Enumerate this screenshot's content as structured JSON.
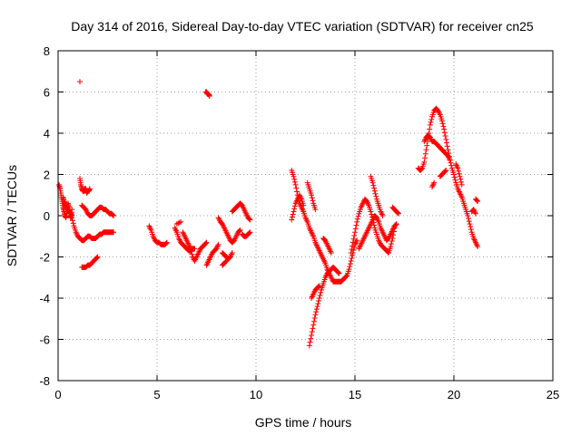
{
  "chart_data": {
    "type": "scatter",
    "title": "Day 314 of 2016, Sidereal Day-to-day VTEC variation (SDTVAR) for receiver cn25",
    "xlabel": "GPS time / hours",
    "ylabel": "SDTVAR / TECUs",
    "xlim": [
      0,
      25
    ],
    "ylim": [
      -8,
      8
    ],
    "xticks": [
      "0",
      "5",
      "10",
      "15",
      "20",
      "25"
    ],
    "yticks": [
      "-8",
      "-6",
      "-4",
      "-2",
      "0",
      "2",
      "4",
      "6",
      "8"
    ],
    "grid": true,
    "marker": "+",
    "point_color": "#ff0000",
    "segments": [
      [
        [
          0.05,
          1.5
        ],
        [
          0.1,
          1.3
        ],
        [
          0.15,
          1.0
        ],
        [
          0.2,
          0.7
        ],
        [
          0.25,
          0.4
        ],
        [
          0.3,
          0.2
        ],
        [
          0.35,
          0.0
        ],
        [
          0.4,
          -0.1
        ],
        [
          0.45,
          0.2
        ],
        [
          0.5,
          0.6
        ],
        [
          0.55,
          0.4
        ],
        [
          0.6,
          0.0
        ],
        [
          0.65,
          -0.1
        ],
        [
          0.7,
          0.3
        ]
      ],
      [
        [
          0.25,
          0.9
        ],
        [
          0.3,
          0.7
        ],
        [
          0.35,
          0.6
        ],
        [
          0.4,
          0.5
        ],
        [
          0.45,
          0.4
        ],
        [
          0.5,
          0.3
        ],
        [
          0.55,
          0.2
        ],
        [
          0.6,
          0.1
        ],
        [
          0.65,
          0.1
        ],
        [
          0.7,
          0.0
        ]
      ],
      [
        [
          0.7,
          -0.1
        ],
        [
          0.8,
          -0.5
        ],
        [
          0.9,
          -0.8
        ],
        [
          1.0,
          -1.0
        ],
        [
          1.1,
          -1.1
        ],
        [
          1.2,
          -1.2
        ],
        [
          1.3,
          -1.2
        ],
        [
          1.4,
          -1.1
        ],
        [
          1.5,
          -1.0
        ],
        [
          1.6,
          -1.0
        ],
        [
          1.7,
          -1.1
        ],
        [
          1.8,
          -1.1
        ],
        [
          1.9,
          -1.1
        ],
        [
          2.0,
          -1.0
        ],
        [
          2.1,
          -0.9
        ],
        [
          2.2,
          -0.9
        ],
        [
          2.3,
          -0.8
        ],
        [
          2.4,
          -0.8
        ],
        [
          2.5,
          -0.8
        ],
        [
          2.6,
          -0.8
        ],
        [
          2.7,
          -0.8
        ],
        [
          2.8,
          -0.8
        ]
      ],
      [
        [
          1.1,
          1.8
        ],
        [
          1.15,
          1.5
        ],
        [
          1.2,
          1.3
        ],
        [
          1.25,
          1.2
        ],
        [
          1.3,
          1.2
        ],
        [
          1.35,
          1.3
        ],
        [
          1.4,
          1.3
        ],
        [
          1.45,
          1.1
        ],
        [
          1.5,
          1.2
        ],
        [
          1.55,
          1.2
        ],
        [
          1.6,
          1.3
        ]
      ],
      [
        [
          1.2,
          0.5
        ],
        [
          1.3,
          0.4
        ],
        [
          1.4,
          0.3
        ],
        [
          1.5,
          0.1
        ],
        [
          1.6,
          0.0
        ],
        [
          1.7,
          0.0
        ],
        [
          1.8,
          0.1
        ],
        [
          1.9,
          0.2
        ],
        [
          2.0,
          0.3
        ],
        [
          2.1,
          0.4
        ],
        [
          2.2,
          0.4
        ],
        [
          2.3,
          0.3
        ],
        [
          2.4,
          0.3
        ],
        [
          2.5,
          0.2
        ],
        [
          2.6,
          0.1
        ],
        [
          2.7,
          0.1
        ],
        [
          2.8,
          0.0
        ]
      ],
      [
        [
          1.2,
          -2.5
        ],
        [
          1.3,
          -2.5
        ],
        [
          1.4,
          -2.5
        ],
        [
          1.5,
          -2.4
        ],
        [
          1.6,
          -2.4
        ],
        [
          1.7,
          -2.3
        ],
        [
          1.8,
          -2.2
        ],
        [
          1.9,
          -2.1
        ],
        [
          2.0,
          -2.0
        ]
      ],
      [
        [
          1.1,
          6.5
        ]
      ],
      [
        [
          4.6,
          -0.5
        ],
        [
          4.7,
          -0.7
        ],
        [
          4.8,
          -1.0
        ],
        [
          4.9,
          -1.2
        ],
        [
          5.0,
          -1.3
        ],
        [
          5.1,
          -1.3
        ],
        [
          5.2,
          -1.4
        ],
        [
          5.3,
          -1.4
        ],
        [
          5.4,
          -1.4
        ],
        [
          5.5,
          -1.3
        ]
      ],
      [
        [
          5.9,
          -0.6
        ],
        [
          6.0,
          -0.8
        ],
        [
          6.1,
          -1.1
        ],
        [
          6.2,
          -1.3
        ],
        [
          6.3,
          -1.4
        ],
        [
          6.4,
          -1.5
        ],
        [
          6.5,
          -1.6
        ],
        [
          6.6,
          -1.7
        ],
        [
          6.7,
          -1.7
        ],
        [
          6.8,
          -1.6
        ],
        [
          6.9,
          -1.6
        ]
      ],
      [
        [
          6.3,
          -0.8
        ],
        [
          6.4,
          -1.0
        ],
        [
          6.5,
          -1.2
        ],
        [
          6.6,
          -1.4
        ],
        [
          6.7,
          -1.6
        ],
        [
          6.8,
          -2.0
        ],
        [
          6.9,
          -2.2
        ],
        [
          7.0,
          -2.0
        ],
        [
          7.1,
          -1.8
        ],
        [
          7.2,
          -1.6
        ],
        [
          7.3,
          -1.5
        ],
        [
          7.4,
          -1.4
        ],
        [
          7.5,
          -1.3
        ]
      ],
      [
        [
          6.0,
          -0.4
        ],
        [
          6.2,
          -0.3
        ]
      ],
      [
        [
          7.5,
          -2.4
        ],
        [
          7.6,
          -2.2
        ],
        [
          7.7,
          -2.0
        ],
        [
          7.8,
          -1.8
        ],
        [
          7.9,
          -1.7
        ],
        [
          8.0,
          -1.6
        ],
        [
          8.1,
          -1.4
        ]
      ],
      [
        [
          7.45,
          6.0
        ],
        [
          7.5,
          6.0
        ],
        [
          7.55,
          5.9
        ],
        [
          7.6,
          5.9
        ],
        [
          7.65,
          5.8
        ]
      ],
      [
        [
          8.1,
          -0.1
        ],
        [
          8.2,
          -0.3
        ],
        [
          8.3,
          -0.4
        ],
        [
          8.4,
          -0.6
        ],
        [
          8.5,
          -0.8
        ],
        [
          8.6,
          -1.0
        ],
        [
          8.7,
          -1.2
        ],
        [
          8.8,
          -1.3
        ],
        [
          8.9,
          -1.2
        ],
        [
          9.0,
          -1.0
        ],
        [
          9.1,
          -0.8
        ],
        [
          9.2,
          -0.7
        ]
      ],
      [
        [
          8.3,
          -1.8
        ],
        [
          8.4,
          -1.9
        ],
        [
          8.5,
          -2.0
        ],
        [
          8.6,
          -2.1
        ],
        [
          8.7,
          -2.0
        ],
        [
          8.8,
          -1.8
        ]
      ],
      [
        [
          8.3,
          -2.4
        ],
        [
          8.4,
          -2.3
        ],
        [
          8.5,
          -2.2
        ]
      ],
      [
        [
          8.8,
          0.2
        ],
        [
          8.9,
          0.3
        ],
        [
          9.0,
          0.4
        ],
        [
          9.1,
          0.5
        ],
        [
          9.2,
          0.6
        ],
        [
          9.3,
          0.5
        ],
        [
          9.4,
          0.3
        ],
        [
          9.5,
          0.1
        ],
        [
          9.6,
          -0.1
        ],
        [
          9.7,
          -0.2
        ]
      ],
      [
        [
          9.3,
          -0.9
        ],
        [
          9.4,
          -1.0
        ],
        [
          9.5,
          -1.0
        ],
        [
          9.6,
          -0.9
        ],
        [
          9.7,
          -0.8
        ]
      ],
      [
        [
          11.8,
          2.2
        ],
        [
          11.9,
          1.9
        ],
        [
          12.0,
          1.5
        ],
        [
          12.1,
          1.0
        ],
        [
          12.2,
          0.6
        ],
        [
          12.3,
          0.4
        ],
        [
          12.4,
          0.2
        ],
        [
          12.5,
          -0.1
        ],
        [
          12.6,
          -0.3
        ],
        [
          12.7,
          -0.6
        ],
        [
          12.8,
          -0.8
        ],
        [
          12.9,
          -1.0
        ],
        [
          13.0,
          -1.3
        ],
        [
          13.1,
          -1.5
        ],
        [
          13.2,
          -1.7
        ],
        [
          13.3,
          -1.9
        ],
        [
          13.4,
          -2.1
        ],
        [
          13.5,
          -2.3
        ],
        [
          13.6,
          -2.6
        ],
        [
          13.7,
          -2.8
        ],
        [
          13.8,
          -3.0
        ],
        [
          13.9,
          -3.2
        ],
        [
          14.0,
          -3.2
        ],
        [
          14.1,
          -3.2
        ],
        [
          14.2,
          -3.2
        ],
        [
          14.3,
          -3.2
        ],
        [
          14.4,
          -3.1
        ],
        [
          14.5,
          -3.0
        ],
        [
          14.6,
          -2.9
        ],
        [
          14.7,
          -2.6
        ],
        [
          14.8,
          -2.2
        ],
        [
          14.9,
          -1.8
        ],
        [
          15.0,
          -1.4
        ],
        [
          15.1,
          -1.2
        ]
      ],
      [
        [
          11.8,
          -0.2
        ],
        [
          11.9,
          0.2
        ],
        [
          12.0,
          0.6
        ],
        [
          12.1,
          0.8
        ],
        [
          12.2,
          1.0
        ],
        [
          12.3,
          0.8
        ],
        [
          12.4,
          0.5
        ]
      ],
      [
        [
          12.6,
          1.6
        ],
        [
          12.7,
          1.3
        ],
        [
          12.8,
          1.0
        ],
        [
          12.9,
          0.6
        ],
        [
          13.0,
          0.3
        ]
      ],
      [
        [
          12.8,
          -4.0
        ],
        [
          12.9,
          -3.8
        ],
        [
          13.0,
          -3.6
        ],
        [
          13.1,
          -3.5
        ],
        [
          13.2,
          -3.4
        ]
      ],
      [
        [
          12.7,
          -6.3
        ],
        [
          12.8,
          -5.8
        ],
        [
          12.9,
          -5.3
        ],
        [
          13.0,
          -4.8
        ],
        [
          13.1,
          -4.4
        ],
        [
          13.2,
          -4.0
        ],
        [
          13.3,
          -3.6
        ],
        [
          13.4,
          -3.3
        ],
        [
          13.5,
          -3.0
        ],
        [
          13.6,
          -2.8
        ],
        [
          13.7,
          -2.7
        ],
        [
          13.8,
          -2.6
        ],
        [
          13.9,
          -2.5
        ],
        [
          14.0,
          -2.6
        ],
        [
          14.1,
          -2.7
        ],
        [
          14.2,
          -2.8
        ]
      ],
      [
        [
          13.4,
          -1.1
        ],
        [
          13.5,
          -1.2
        ],
        [
          13.6,
          -1.4
        ],
        [
          13.7,
          -1.6
        ],
        [
          13.8,
          -1.8
        ]
      ],
      [
        [
          14.8,
          -1.8
        ],
        [
          14.9,
          -1.3
        ],
        [
          15.0,
          -0.8
        ],
        [
          15.1,
          -0.3
        ],
        [
          15.2,
          0.1
        ],
        [
          15.3,
          0.4
        ],
        [
          15.4,
          0.6
        ],
        [
          15.5,
          0.8
        ],
        [
          15.6,
          0.7
        ],
        [
          15.7,
          0.5
        ],
        [
          15.8,
          0.2
        ],
        [
          15.9,
          -0.2
        ],
        [
          16.0,
          -0.6
        ],
        [
          16.1,
          -0.9
        ],
        [
          16.2,
          -1.2
        ],
        [
          16.3,
          -1.4
        ],
        [
          16.4,
          -1.5
        ],
        [
          16.5,
          -1.6
        ],
        [
          16.6,
          -1.7
        ],
        [
          16.7,
          -1.8
        ],
        [
          16.8,
          -1.5
        ],
        [
          16.9,
          -1.1
        ],
        [
          17.0,
          -0.6
        ]
      ],
      [
        [
          15.2,
          -1.6
        ],
        [
          15.3,
          -1.4
        ],
        [
          15.4,
          -1.2
        ],
        [
          15.5,
          -1.0
        ],
        [
          15.6,
          -0.8
        ],
        [
          15.7,
          -0.6
        ],
        [
          15.8,
          -0.4
        ],
        [
          15.9,
          -0.2
        ],
        [
          16.0,
          0.0
        ],
        [
          16.1,
          -0.1
        ],
        [
          16.2,
          -0.3
        ],
        [
          16.3,
          -0.6
        ],
        [
          16.4,
          -0.8
        ],
        [
          16.5,
          -1.0
        ],
        [
          16.6,
          -1.2
        ],
        [
          16.7,
          -1.1
        ],
        [
          16.8,
          -0.9
        ],
        [
          16.9,
          -0.7
        ],
        [
          17.0,
          -0.5
        ],
        [
          17.1,
          -0.4
        ]
      ],
      [
        [
          15.8,
          1.9
        ],
        [
          15.9,
          1.6
        ],
        [
          16.0,
          1.2
        ],
        [
          16.1,
          0.8
        ],
        [
          16.2,
          0.5
        ],
        [
          16.3,
          0.2
        ],
        [
          16.4,
          0.0
        ]
      ],
      [
        [
          16.9,
          0.4
        ],
        [
          17.0,
          0.3
        ],
        [
          17.1,
          0.2
        ],
        [
          17.2,
          0.1
        ]
      ],
      [
        [
          18.2,
          2.3
        ],
        [
          18.3,
          2.2
        ],
        [
          18.4,
          2.3
        ],
        [
          18.5,
          2.6
        ],
        [
          18.6,
          3.2
        ],
        [
          18.7,
          3.8
        ],
        [
          18.8,
          4.4
        ],
        [
          18.9,
          4.8
        ],
        [
          19.0,
          5.1
        ],
        [
          19.1,
          5.2
        ],
        [
          19.2,
          5.1
        ],
        [
          19.3,
          4.9
        ],
        [
          19.4,
          4.6
        ],
        [
          19.5,
          4.2
        ],
        [
          19.6,
          3.7
        ],
        [
          19.7,
          3.2
        ],
        [
          19.8,
          2.7
        ],
        [
          19.9,
          2.3
        ],
        [
          20.0,
          2.0
        ],
        [
          20.1,
          1.6
        ],
        [
          20.2,
          1.3
        ],
        [
          20.3,
          1.1
        ],
        [
          20.4,
          0.9
        ],
        [
          20.5,
          0.6
        ],
        [
          20.6,
          0.3
        ],
        [
          20.7,
          0.0
        ],
        [
          20.8,
          -0.4
        ],
        [
          20.9,
          -0.8
        ],
        [
          21.0,
          -1.1
        ],
        [
          21.1,
          -1.3
        ],
        [
          21.2,
          -1.5
        ]
      ],
      [
        [
          18.5,
          3.6
        ],
        [
          18.6,
          3.8
        ],
        [
          18.7,
          3.9
        ],
        [
          18.8,
          3.8
        ],
        [
          18.9,
          3.6
        ],
        [
          19.0,
          3.6
        ],
        [
          19.1,
          3.5
        ],
        [
          19.2,
          3.4
        ],
        [
          19.3,
          3.3
        ],
        [
          19.4,
          3.2
        ],
        [
          19.5,
          3.1
        ],
        [
          19.6,
          3.0
        ],
        [
          19.7,
          2.9
        ],
        [
          19.8,
          2.7
        ]
      ],
      [
        [
          19.3,
          1.9
        ],
        [
          19.4,
          2.0
        ],
        [
          19.5,
          2.1
        ],
        [
          19.6,
          2.2
        ]
      ],
      [
        [
          18.9,
          1.4
        ],
        [
          19.0,
          1.6
        ]
      ],
      [
        [
          20.1,
          2.5
        ],
        [
          20.2,
          2.3
        ],
        [
          20.3,
          1.9
        ],
        [
          20.4,
          1.5
        ]
      ],
      [
        [
          21.1,
          0.8
        ],
        [
          21.2,
          0.7
        ]
      ],
      [
        [
          20.9,
          0.2
        ],
        [
          21.0,
          0.3
        ],
        [
          21.1,
          0.1
        ]
      ]
    ]
  }
}
